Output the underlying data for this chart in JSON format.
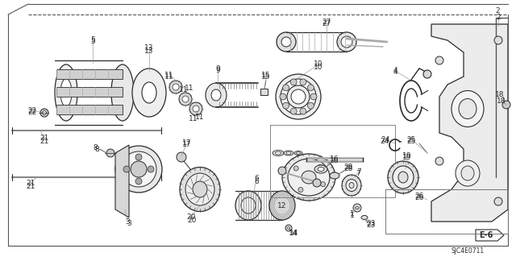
{
  "bg_color": "#ffffff",
  "lc": "#2a2a2a",
  "diagram_code": "SJC4E0711",
  "section_label": "E-6",
  "figsize": [
    6.4,
    3.19
  ],
  "dpi": 100
}
